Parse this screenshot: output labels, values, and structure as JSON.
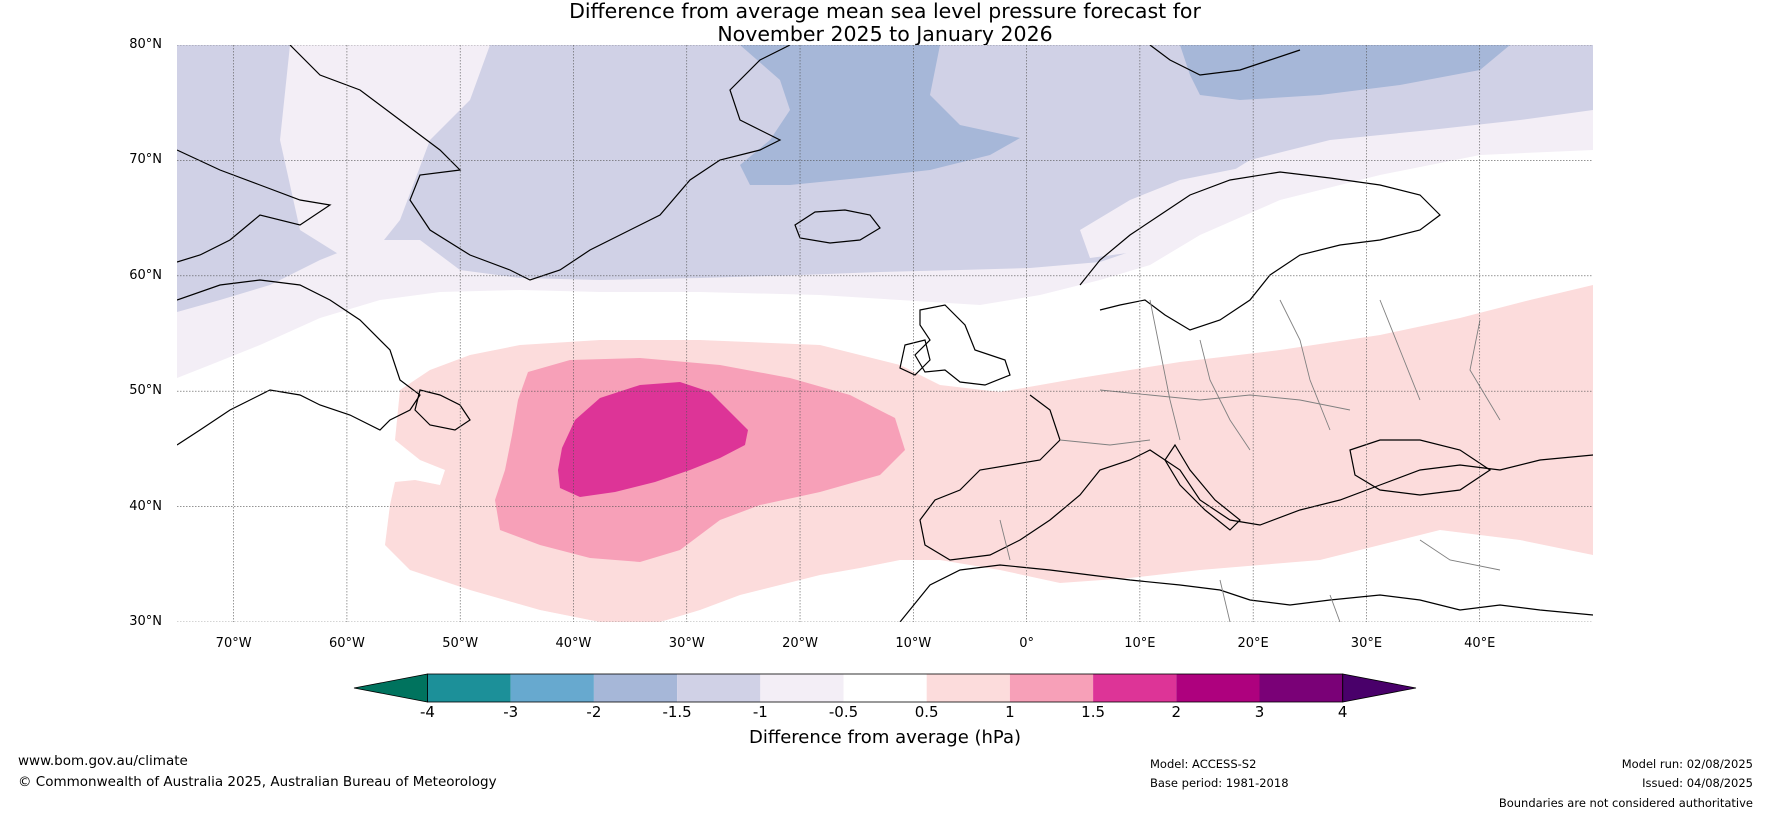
{
  "title": {
    "line1": "Difference from average mean sea level pressure forecast for",
    "line2": "November 2025 to January 2026"
  },
  "map": {
    "lon_range": [
      -75,
      50
    ],
    "lat_range": [
      30,
      80
    ],
    "lat_ticks": [
      "80°N",
      "70°N",
      "60°N",
      "50°N",
      "40°N",
      "30°N"
    ],
    "lon_ticks": [
      "70°W",
      "60°W",
      "50°W",
      "40°W",
      "30°W",
      "20°W",
      "10°W",
      "0°",
      "10°E",
      "20°E",
      "30°E",
      "40°E"
    ],
    "gridlines": true,
    "anomaly_regions": [
      {
        "level": "-1.5 to -1",
        "color": "#a6b7d8",
        "area": "Greenland Sea to Svalbard"
      },
      {
        "level": "-1 to -0.5",
        "color": "#d0d1e6",
        "area": "Greenland, Norwegian Sea, Arctic"
      },
      {
        "level": "-0.5 to 0.5 (low)",
        "color": "#f3eef6",
        "area": "Subpolar North Atlantic, Scandinavia"
      },
      {
        "level": "0.5 to 1",
        "color": "#fcdcdc",
        "area": "Central North Atlantic to Europe and Black Sea"
      },
      {
        "level": "1 to 1.5",
        "color": "#f7a0b8",
        "area": "Central North Atlantic"
      },
      {
        "level": "1.5 to 2",
        "color": "#dd3497",
        "area": "Centred near 45°N 35°W"
      }
    ]
  },
  "colorbar": {
    "colors": [
      "#00735e",
      "#1c9099",
      "#67a9cf",
      "#a6b7d8",
      "#d0d1e6",
      "#f3eef6",
      "#ffffff",
      "#fcdcdc",
      "#f7a0b8",
      "#dd3497",
      "#ae017e",
      "#7a0177",
      "#49006a"
    ],
    "labels": [
      "-4",
      "-3",
      "-2",
      "-1.5",
      "-1",
      "-0.5",
      "0.5",
      "1",
      "1.5",
      "2",
      "3",
      "4"
    ],
    "title": "Difference from average (hPa)"
  },
  "footer": {
    "website": "www.bom.gov.au/climate",
    "copyright": "© Commonwealth of Australia 2025, Australian Bureau of Meteorology",
    "model": "Model: ACCESS-S2",
    "base_period": "Base period: 1981-2018",
    "model_run": "Model run: 02/08/2025",
    "issued": "Issued: 04/08/2025",
    "disclaimer": "Boundaries are not considered authoritative"
  }
}
